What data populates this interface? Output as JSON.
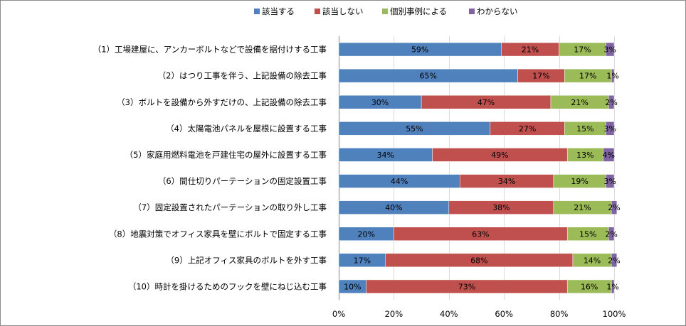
{
  "chart_data": {
    "type": "bar",
    "stacked": true,
    "orientation": "horizontal",
    "percent_stacked": true,
    "title": "",
    "xlabel": "",
    "ylabel": "",
    "xlim": [
      0,
      100
    ],
    "x_ticks": [
      "0%",
      "20%",
      "40%",
      "60%",
      "80%",
      "100%"
    ],
    "grid": true,
    "legend_position": "top",
    "categories": [
      "（1）工場建屋に、アンカーボルトなどで設備を据付けする工事",
      "（2）はつり工事を伴う、上記設備の除去工事",
      "（3）ボルトを設備から外すだけの、上記設備の除去工事",
      "（4）太陽電池パネルを屋根に設置する工事",
      "（5）家庭用燃料電池を戸建住宅の屋外に設置する工事",
      "（6）間仕切りパーテーションの固定設置工事",
      "（7）固定設置されたパーテーションの取り外し工事",
      "（8）地震対策でオフィス家具を壁にボルトで固定する工事",
      "（9）上記オフィス家具のボルトを外す工事",
      "（10）時計を掛けるためのフックを壁にねじ込む工事"
    ],
    "series": [
      {
        "name": "該当する",
        "color": "#4f81bd",
        "values": [
          59,
          65,
          30,
          55,
          34,
          44,
          40,
          20,
          17,
          10
        ]
      },
      {
        "name": "該当しない",
        "color": "#c0504d",
        "values": [
          21,
          17,
          47,
          27,
          49,
          34,
          38,
          63,
          68,
          73
        ]
      },
      {
        "name": "個別事例による",
        "color": "#9bbb59",
        "values": [
          17,
          17,
          21,
          15,
          13,
          19,
          21,
          15,
          14,
          16
        ]
      },
      {
        "name": "わからない",
        "color": "#8064a2",
        "values": [
          3,
          1,
          2,
          3,
          4,
          3,
          2,
          2,
          2,
          1
        ]
      }
    ],
    "value_labels": [
      [
        "59%",
        "21%",
        "17%",
        "3%"
      ],
      [
        "65%",
        "17%",
        "17%",
        "1%"
      ],
      [
        "30%",
        "47%",
        "21%",
        "2%"
      ],
      [
        "55%",
        "27%",
        "15%",
        "3%"
      ],
      [
        "34%",
        "49%",
        "13%",
        "4%"
      ],
      [
        "44%",
        "34%",
        "19%",
        "3%"
      ],
      [
        "40%",
        "38%",
        "21%",
        "2%"
      ],
      [
        "20%",
        "63%",
        "15%",
        "2%"
      ],
      [
        "17%",
        "68%",
        "14%",
        "2%"
      ],
      [
        "10%",
        "73%",
        "16%",
        "1%"
      ]
    ]
  }
}
